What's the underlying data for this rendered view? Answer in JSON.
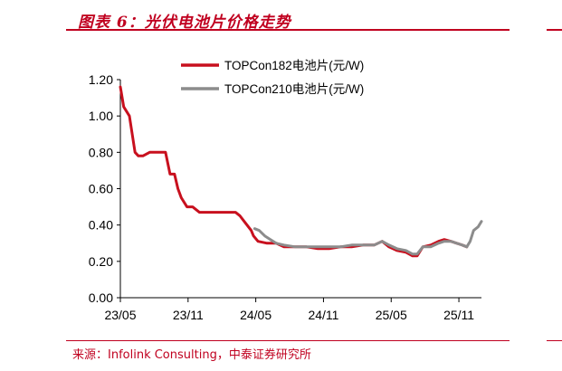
{
  "header": {
    "title": "图表 6：光伏电池片价格走势"
  },
  "footer": {
    "source": "来源：Infolink Consulting，中泰证券研究所"
  },
  "colors": {
    "series1": "#c8101e",
    "series2": "#8c8c8c",
    "accent": "#c0001f"
  },
  "chart_data": {
    "type": "line",
    "title": "",
    "xlabel": "",
    "ylabel": "",
    "xlim": [
      0,
      32
    ],
    "ylim": [
      0,
      1.2
    ],
    "x_ticks": [
      {
        "label": "23/05",
        "x": 0
      },
      {
        "label": "23/11",
        "x": 6
      },
      {
        "label": "24/05",
        "x": 12
      },
      {
        "label": "24/11",
        "x": 18
      },
      {
        "label": "25/05",
        "x": 24
      },
      {
        "label": "25/11",
        "x": 30
      }
    ],
    "y_ticks": [
      {
        "label": "0.00",
        "y": 0
      },
      {
        "label": "0.20",
        "y": 0.2
      },
      {
        "label": "0.40",
        "y": 0.4
      },
      {
        "label": "0.60",
        "y": 0.6
      },
      {
        "label": "0.80",
        "y": 0.8
      },
      {
        "label": "1.00",
        "y": 1.0
      },
      {
        "label": "1.20",
        "y": 1.2
      }
    ],
    "legend": "top-right",
    "series": [
      {
        "name": "TOPCon182电池片(元/W)",
        "color": "#c8101e",
        "points": [
          [
            0,
            1.16
          ],
          [
            0.3,
            1.05
          ],
          [
            0.8,
            1.0
          ],
          [
            1.3,
            0.8
          ],
          [
            1.6,
            0.78
          ],
          [
            2.0,
            0.78
          ],
          [
            2.6,
            0.8
          ],
          [
            3.5,
            0.8
          ],
          [
            4.0,
            0.8
          ],
          [
            4.4,
            0.68
          ],
          [
            4.8,
            0.68
          ],
          [
            5.1,
            0.6
          ],
          [
            5.4,
            0.55
          ],
          [
            5.9,
            0.5
          ],
          [
            6.4,
            0.5
          ],
          [
            7.0,
            0.47
          ],
          [
            8.0,
            0.47
          ],
          [
            9.0,
            0.47
          ],
          [
            10.2,
            0.47
          ],
          [
            10.6,
            0.45
          ],
          [
            11.1,
            0.41
          ],
          [
            11.6,
            0.37
          ],
          [
            11.8,
            0.34
          ],
          [
            12.2,
            0.31
          ],
          [
            13.0,
            0.3
          ],
          [
            13.8,
            0.3
          ],
          [
            14.5,
            0.28
          ],
          [
            15.5,
            0.28
          ],
          [
            16.5,
            0.28
          ],
          [
            17.5,
            0.27
          ],
          [
            18.5,
            0.27
          ],
          [
            19.5,
            0.28
          ],
          [
            20.5,
            0.28
          ],
          [
            21.5,
            0.29
          ],
          [
            22.5,
            0.29
          ],
          [
            23.2,
            0.31
          ],
          [
            23.8,
            0.28
          ],
          [
            24.5,
            0.26
          ],
          [
            25.3,
            0.25
          ],
          [
            25.9,
            0.23
          ],
          [
            26.3,
            0.23
          ],
          [
            26.8,
            0.28
          ],
          [
            27.5,
            0.29
          ],
          [
            28.2,
            0.31
          ],
          [
            28.7,
            0.32
          ],
          [
            29.3,
            0.31
          ],
          [
            29.8,
            0.3
          ],
          [
            30.3,
            0.29
          ],
          [
            30.7,
            0.28
          ]
        ]
      },
      {
        "name": "TOPCon210电池片(元/W)",
        "color": "#8c8c8c",
        "points": [
          [
            11.9,
            0.38
          ],
          [
            12.3,
            0.37
          ],
          [
            12.8,
            0.34
          ],
          [
            13.3,
            0.32
          ],
          [
            13.8,
            0.3
          ],
          [
            14.5,
            0.29
          ],
          [
            15.5,
            0.28
          ],
          [
            16.5,
            0.28
          ],
          [
            17.5,
            0.28
          ],
          [
            18.5,
            0.28
          ],
          [
            19.5,
            0.28
          ],
          [
            20.5,
            0.29
          ],
          [
            21.5,
            0.29
          ],
          [
            22.5,
            0.29
          ],
          [
            23.2,
            0.31
          ],
          [
            23.8,
            0.29
          ],
          [
            24.5,
            0.27
          ],
          [
            25.3,
            0.26
          ],
          [
            25.9,
            0.24
          ],
          [
            26.3,
            0.24
          ],
          [
            26.8,
            0.28
          ],
          [
            27.5,
            0.28
          ],
          [
            28.2,
            0.3
          ],
          [
            28.7,
            0.31
          ],
          [
            29.3,
            0.31
          ],
          [
            29.8,
            0.3
          ],
          [
            30.3,
            0.29
          ],
          [
            30.7,
            0.28
          ],
          [
            31.0,
            0.31
          ],
          [
            31.3,
            0.37
          ],
          [
            31.7,
            0.39
          ],
          [
            32.0,
            0.42
          ]
        ]
      }
    ]
  }
}
